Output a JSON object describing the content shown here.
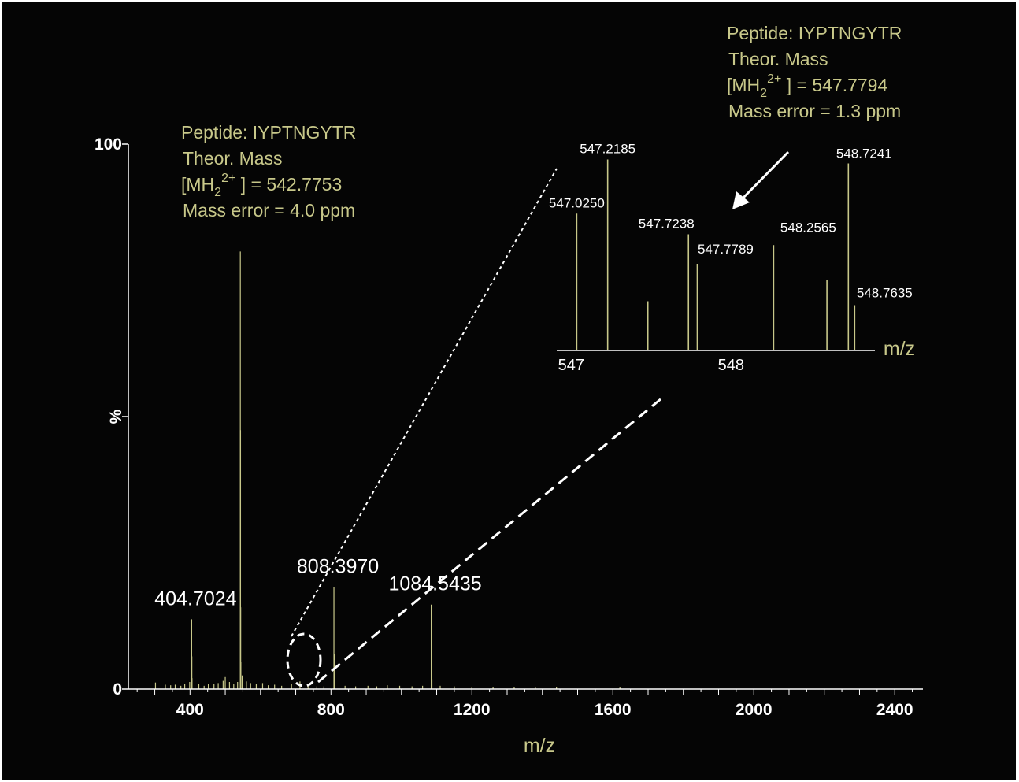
{
  "colors": {
    "background": "#050505",
    "peak": "#c8c88a",
    "axis": "#ffffff",
    "annotation": "#c8c88a",
    "label": "#ffffff"
  },
  "chart_data": [
    {
      "type": "bar",
      "name": "main-spectrum",
      "xlabel": "m/z",
      "ylabel": "%",
      "xlim": [
        225,
        2480
      ],
      "ylim": [
        0,
        100
      ],
      "x_ticks": [
        400,
        800,
        1200,
        1600,
        2000,
        2400
      ],
      "y_ticks": [
        0,
        100
      ],
      "peaks": [
        {
          "x": 302,
          "y": 1.2
        },
        {
          "x": 330,
          "y": 0.8
        },
        {
          "x": 345,
          "y": 0.7
        },
        {
          "x": 358,
          "y": 0.8
        },
        {
          "x": 374,
          "y": 0.6
        },
        {
          "x": 385,
          "y": 1.0
        },
        {
          "x": 399,
          "y": 1.3
        },
        {
          "x": 404.7024,
          "y": 12.8,
          "label": "404.7024"
        },
        {
          "x": 405.2,
          "y": 6.0
        },
        {
          "x": 405.7,
          "y": 2.0
        },
        {
          "x": 425,
          "y": 0.9
        },
        {
          "x": 440,
          "y": 0.6
        },
        {
          "x": 452,
          "y": 1.0
        },
        {
          "x": 468,
          "y": 1.0
        },
        {
          "x": 480,
          "y": 1.1
        },
        {
          "x": 494,
          "y": 1.5
        },
        {
          "x": 500,
          "y": 2.2
        },
        {
          "x": 512,
          "y": 1.3
        },
        {
          "x": 524,
          "y": 1.0
        },
        {
          "x": 535,
          "y": 1.3
        },
        {
          "x": 542.7753,
          "y": 80.3
        },
        {
          "x": 543.3,
          "y": 47.5
        },
        {
          "x": 543.8,
          "y": 15.0
        },
        {
          "x": 544.3,
          "y": 5.0
        },
        {
          "x": 548,
          "y": 2.5
        },
        {
          "x": 560,
          "y": 1.4
        },
        {
          "x": 572,
          "y": 1.1
        },
        {
          "x": 588,
          "y": 1.0
        },
        {
          "x": 606,
          "y": 1.1
        },
        {
          "x": 622,
          "y": 0.7
        },
        {
          "x": 640,
          "y": 0.8
        },
        {
          "x": 660,
          "y": 0.6
        },
        {
          "x": 688,
          "y": 0.9
        },
        {
          "x": 712,
          "y": 1.4
        },
        {
          "x": 735,
          "y": 0.6
        },
        {
          "x": 760,
          "y": 0.5
        },
        {
          "x": 780,
          "y": 0.5
        },
        {
          "x": 808.397,
          "y": 18.7,
          "label": "808.3970"
        },
        {
          "x": 809.4,
          "y": 6.5
        },
        {
          "x": 810.4,
          "y": 2.0
        },
        {
          "x": 840,
          "y": 0.6
        },
        {
          "x": 870,
          "y": 0.5
        },
        {
          "x": 905,
          "y": 0.6
        },
        {
          "x": 930,
          "y": 0.5
        },
        {
          "x": 960,
          "y": 0.7
        },
        {
          "x": 995,
          "y": 0.6
        },
        {
          "x": 1030,
          "y": 0.5
        },
        {
          "x": 1060,
          "y": 0.6
        },
        {
          "x": 1084.5435,
          "y": 15.5,
          "label": "1084.5435"
        },
        {
          "x": 1085.5,
          "y": 5.5
        },
        {
          "x": 1086.5,
          "y": 1.8
        },
        {
          "x": 1110,
          "y": 0.6
        },
        {
          "x": 1150,
          "y": 0.5
        },
        {
          "x": 1200,
          "y": 0.4
        },
        {
          "x": 1260,
          "y": 0.4
        },
        {
          "x": 1320,
          "y": 0.4
        },
        {
          "x": 1380,
          "y": 0.3
        },
        {
          "x": 1440,
          "y": 0.3
        },
        {
          "x": 1620,
          "y": 0.3
        }
      ],
      "annotation": [
        "Peptide: IYPTNGYTR",
        "Theor. Mass",
        "[MH",
        "2",
        "2+",
        " ] = 542.7753",
        "Mass error = 4.0 ppm"
      ]
    },
    {
      "type": "bar",
      "name": "inset-zoom",
      "xlabel": "m/z",
      "xlim": [
        546.9,
        548.89
      ],
      "ylim": [
        0,
        100
      ],
      "x_ticks": [
        547,
        548
      ],
      "peaks": [
        {
          "x": 547.025,
          "y": 69.5,
          "label": "547.0250"
        },
        {
          "x": 547.2185,
          "y": 97.0,
          "label": "547.2185"
        },
        {
          "x": 547.47,
          "y": 25.0
        },
        {
          "x": 547.7238,
          "y": 59.0,
          "label": "547.7238"
        },
        {
          "x": 547.7789,
          "y": 44.0,
          "label": "547.7789"
        },
        {
          "x": 548.2565,
          "y": 53.5,
          "label": "548.2565"
        },
        {
          "x": 548.59,
          "y": 36.0
        },
        {
          "x": 548.7241,
          "y": 95.0,
          "label": "548.7241"
        },
        {
          "x": 548.7635,
          "y": 23.0,
          "label": "548.7635"
        }
      ],
      "annotation": [
        "Peptide: IYPTNGYTR",
        "Theor. Mass",
        "[MH",
        "2",
        "2+",
        " ] = 547.7794",
        "Mass error = 1.3 ppm"
      ]
    }
  ]
}
